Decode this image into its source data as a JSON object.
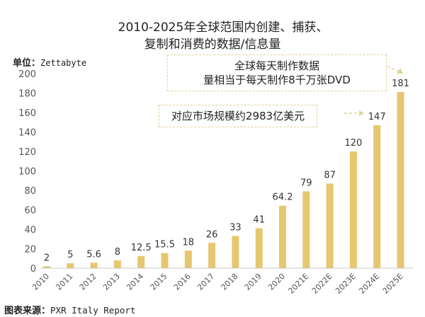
{
  "chart_data": {
    "type": "bar",
    "title": "2010-2025年全球范围内创建、捕获、复制和消费的数据/信息量",
    "title_lines": [
      "2010-2025年全球范围内创建、捕获、",
      "复制和消费的数据/信息量"
    ],
    "unit_label": "单位：",
    "unit_value": "Zettabyte",
    "xlabel": "",
    "ylabel": "Zettabyte",
    "ylim": [
      0,
      200
    ],
    "yticks": [
      0,
      20,
      40,
      60,
      80,
      100,
      120,
      140,
      160,
      180,
      200
    ],
    "grid": false,
    "categories": [
      "2010",
      "2011",
      "2012",
      "2013",
      "2014",
      "2015",
      "2016",
      "2017",
      "2018",
      "2019",
      "2020",
      "2021E",
      "2022E",
      "2023E",
      "2024E",
      "2025E"
    ],
    "values": [
      2,
      5,
      5.6,
      8,
      12.5,
      15.5,
      18,
      26,
      33,
      41,
      64.2,
      79,
      87,
      120,
      147,
      181
    ],
    "data_labels": [
      "2",
      "5",
      "5.6",
      "8",
      "12.5",
      "15.5",
      "18",
      "26",
      "33",
      "41",
      "64.2",
      "79",
      "87",
      "120",
      "147",
      "181"
    ],
    "bar_color": "#e6c76f",
    "axis_color": "#c8c8c8",
    "annotations": [
      {
        "lines": [
          "全球每天制作数据",
          "量相当于每天制作8千万张DVD"
        ],
        "points_to": "2025E"
      },
      {
        "lines": [
          "对应市场规模约2983亿美元"
        ],
        "points_to": "2024E"
      }
    ],
    "annotation_border_color": "#e3d29a",
    "source_label": "图表来源：",
    "source_value": "PXR Italy Report"
  }
}
